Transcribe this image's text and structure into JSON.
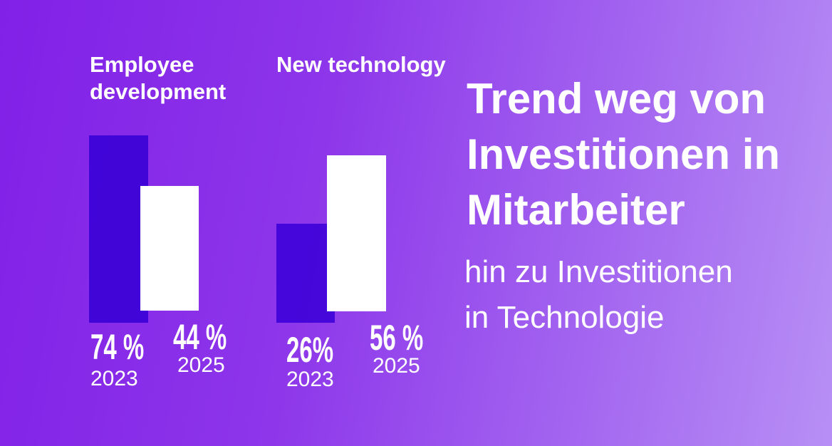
{
  "headline": {
    "title": "Trend weg von Investitionen in Mitarbeiter",
    "title_lines": [
      "Trend weg von",
      "Investitionen in",
      "Mitarbeiter"
    ],
    "subtitle": "hin zu Investitionen in Technologie",
    "subtitle_lines": [
      "hin zu Investitionen",
      "in Technologie"
    ]
  },
  "colors": {
    "background_gradient_start": "#8120e7",
    "background_gradient_end": "#b78ff5",
    "bar_2023": "#7b1bee",
    "bar_2025": "#ffffff",
    "text": "#ffffff"
  },
  "chart_data": {
    "type": "bar",
    "unit": "%",
    "grid": false,
    "legend_position": "none",
    "groups": [
      {
        "label": "Employee development",
        "bars": [
          {
            "year": "2023",
            "value": 74,
            "value_label": "74 %",
            "color": "#7b1bee"
          },
          {
            "year": "2025",
            "value": 44,
            "value_label": "44 %",
            "color": "#ffffff"
          }
        ]
      },
      {
        "label": "New technology",
        "bars": [
          {
            "year": "2023",
            "value": 26,
            "value_label": "26%",
            "color": "#7b1bee"
          },
          {
            "year": "2025",
            "value": 56,
            "value_label": "56 %",
            "color": "#ffffff"
          }
        ]
      }
    ]
  }
}
